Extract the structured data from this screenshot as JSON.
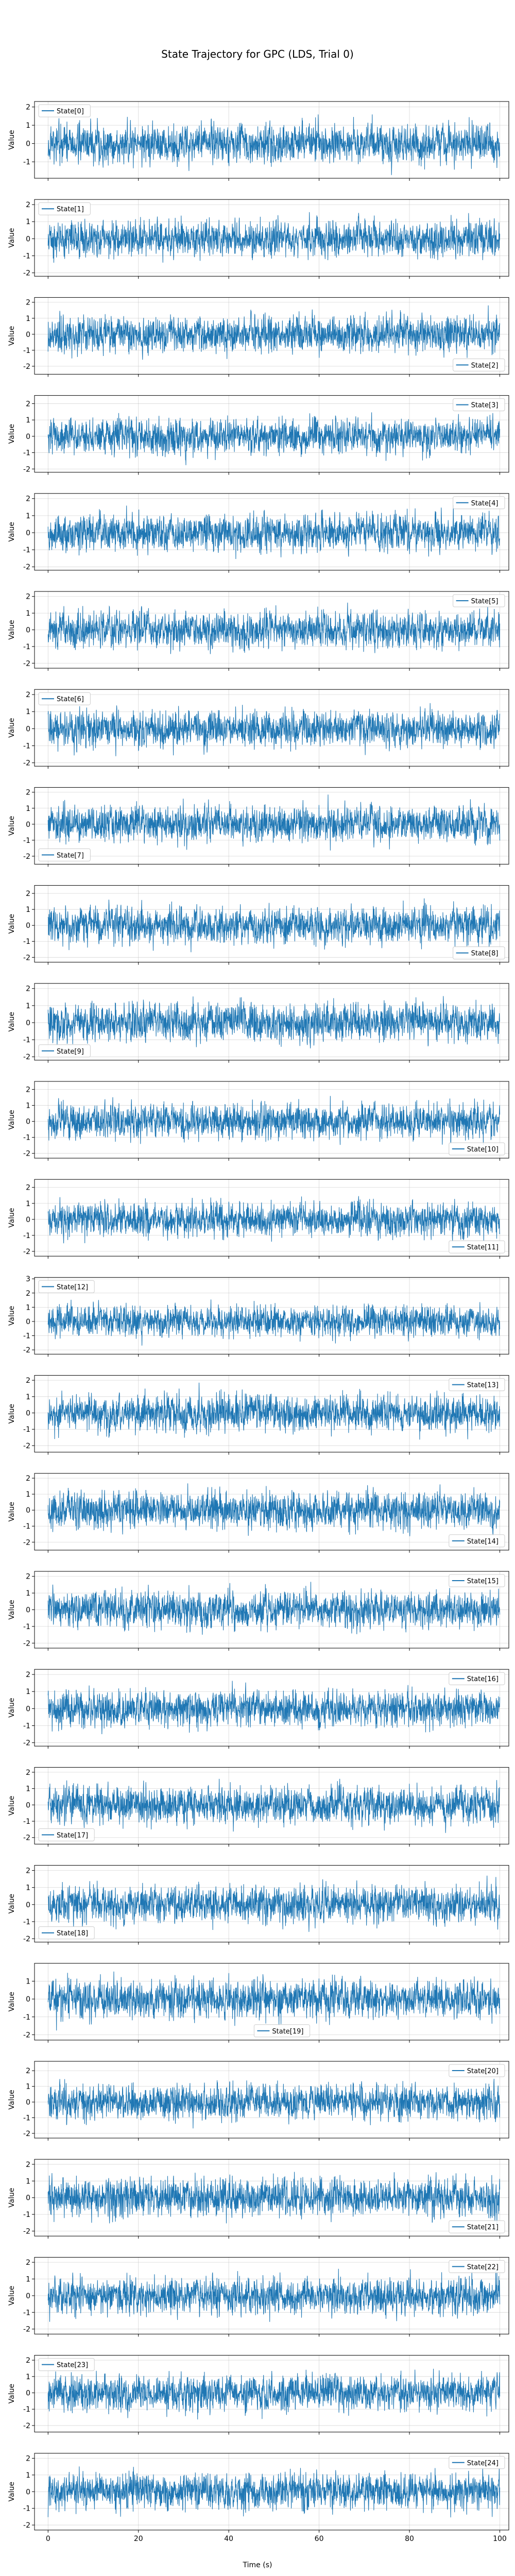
{
  "chart_data": {
    "type": "line",
    "title": "State Trajectory for GPC (LDS, Trial 0)",
    "xlabel": "Time (s)",
    "ylabel": "Value",
    "xlim": [
      -3,
      102
    ],
    "x_ticks": [
      0,
      20,
      40,
      60,
      80,
      100
    ],
    "x_tick_labels": [
      "0",
      "20",
      "40",
      "60",
      "80",
      "100"
    ],
    "series_color": "#1f77b4",
    "grid": true,
    "note_values": "dense noisy trajectories; values are stationary fluctuations around 0 with the visible amplitude",
    "panels": [
      {
        "series": "State[0]",
        "ylim": [
          -1.9,
          2.3
        ],
        "y_ticks": [
          -1,
          0,
          1,
          2
        ],
        "legend": "upper-left",
        "amp": 0.7,
        "seed": 11
      },
      {
        "series": "State[1]",
        "ylim": [
          -2.2,
          2.3
        ],
        "y_ticks": [
          -2,
          -1,
          0,
          1,
          2
        ],
        "legend": "upper-left",
        "amp": 0.7,
        "seed": 12
      },
      {
        "series": "State[2]",
        "ylim": [
          -2.5,
          2.3
        ],
        "y_ticks": [
          -2,
          -1,
          0,
          1,
          2
        ],
        "legend": "lower-right",
        "amp": 0.75,
        "seed": 13
      },
      {
        "series": "State[3]",
        "ylim": [
          -2.2,
          2.5
        ],
        "y_ticks": [
          -2,
          -1,
          0,
          1,
          2
        ],
        "legend": "upper-right",
        "amp": 0.72,
        "seed": 14
      },
      {
        "series": "State[4]",
        "ylim": [
          -2.2,
          2.3
        ],
        "y_ticks": [
          -2,
          -1,
          0,
          1,
          2
        ],
        "legend": "upper-right",
        "amp": 0.72,
        "seed": 15
      },
      {
        "series": "State[5]",
        "ylim": [
          -2.3,
          2.3
        ],
        "y_ticks": [
          -2,
          -1,
          0,
          1,
          2
        ],
        "legend": "upper-right",
        "amp": 0.72,
        "seed": 16
      },
      {
        "series": "State[6]",
        "ylim": [
          -2.2,
          2.3
        ],
        "y_ticks": [
          -2,
          -1,
          0,
          1,
          2
        ],
        "legend": "upper-left",
        "amp": 0.7,
        "seed": 17
      },
      {
        "series": "State[7]",
        "ylim": [
          -2.5,
          2.3
        ],
        "y_ticks": [
          -2,
          -1,
          0,
          1,
          2
        ],
        "legend": "lower-left",
        "amp": 0.75,
        "seed": 18
      },
      {
        "series": "State[8]",
        "ylim": [
          -2.3,
          2.5
        ],
        "y_ticks": [
          -2,
          -1,
          0,
          1,
          2
        ],
        "legend": "lower-right",
        "amp": 0.75,
        "seed": 19
      },
      {
        "series": "State[9]",
        "ylim": [
          -2.2,
          2.3
        ],
        "y_ticks": [
          -2,
          -1,
          0,
          1,
          2
        ],
        "legend": "lower-left",
        "amp": 0.72,
        "seed": 20
      },
      {
        "series": "State[10]",
        "ylim": [
          -2.3,
          2.5
        ],
        "y_ticks": [
          -2,
          -1,
          0,
          1,
          2
        ],
        "legend": "lower-right",
        "amp": 0.72,
        "seed": 21
      },
      {
        "series": "State[11]",
        "ylim": [
          -2.3,
          2.5
        ],
        "y_ticks": [
          -2,
          -1,
          0,
          1,
          2
        ],
        "legend": "lower-right",
        "amp": 0.72,
        "seed": 22
      },
      {
        "series": "State[12]",
        "ylim": [
          -2.3,
          3.1
        ],
        "y_ticks": [
          -2,
          -1,
          0,
          1,
          2,
          3
        ],
        "legend": "upper-left",
        "amp": 0.72,
        "seed": 23
      },
      {
        "series": "State[13]",
        "ylim": [
          -2.4,
          2.3
        ],
        "y_ticks": [
          -2,
          -1,
          0,
          1,
          2
        ],
        "legend": "upper-right",
        "amp": 0.75,
        "seed": 24
      },
      {
        "series": "State[14]",
        "ylim": [
          -2.5,
          2.3
        ],
        "y_ticks": [
          -2,
          -1,
          0,
          1,
          2
        ],
        "legend": "lower-right",
        "amp": 0.78,
        "seed": 25
      },
      {
        "series": "State[15]",
        "ylim": [
          -2.3,
          2.3
        ],
        "y_ticks": [
          -2,
          -1,
          0,
          1,
          2
        ],
        "legend": "upper-right",
        "amp": 0.72,
        "seed": 26
      },
      {
        "series": "State[16]",
        "ylim": [
          -2.2,
          2.3
        ],
        "y_ticks": [
          -2,
          -1,
          0,
          1,
          2
        ],
        "legend": "upper-right",
        "amp": 0.7,
        "seed": 27
      },
      {
        "series": "State[17]",
        "ylim": [
          -2.4,
          2.3
        ],
        "y_ticks": [
          -2,
          -1,
          0,
          1,
          2
        ],
        "legend": "lower-left",
        "amp": 0.75,
        "seed": 28
      },
      {
        "series": "State[18]",
        "ylim": [
          -2.2,
          2.3
        ],
        "y_ticks": [
          -2,
          -1,
          0,
          1,
          2
        ],
        "legend": "lower-left",
        "amp": 0.7,
        "seed": 29
      },
      {
        "series": "State[19]",
        "ylim": [
          -2.3,
          2.0
        ],
        "y_ticks": [
          -2,
          -1,
          0,
          1
        ],
        "legend": "lower-center",
        "amp": 0.72,
        "seed": 30
      },
      {
        "series": "State[20]",
        "ylim": [
          -2.3,
          2.6
        ],
        "y_ticks": [
          -2,
          -1,
          0,
          1,
          2
        ],
        "legend": "upper-right",
        "amp": 0.75,
        "seed": 31
      },
      {
        "series": "State[21]",
        "ylim": [
          -2.3,
          2.3
        ],
        "y_ticks": [
          -2,
          -1,
          0,
          1,
          2
        ],
        "legend": "lower-right",
        "amp": 0.75,
        "seed": 32
      },
      {
        "series": "State[22]",
        "ylim": [
          -2.3,
          2.3
        ],
        "y_ticks": [
          -2,
          -1,
          0,
          1,
          2
        ],
        "legend": "upper-right",
        "amp": 0.72,
        "seed": 33
      },
      {
        "series": "State[23]",
        "ylim": [
          -2.4,
          2.3
        ],
        "y_ticks": [
          -2,
          -1,
          0,
          1,
          2
        ],
        "legend": "upper-left",
        "amp": 0.75,
        "seed": 34
      },
      {
        "series": "State[24]",
        "ylim": [
          -2.3,
          2.3
        ],
        "y_ticks": [
          -2,
          -1,
          0,
          1,
          2
        ],
        "legend": "upper-right",
        "amp": 0.72,
        "seed": 35
      }
    ]
  }
}
